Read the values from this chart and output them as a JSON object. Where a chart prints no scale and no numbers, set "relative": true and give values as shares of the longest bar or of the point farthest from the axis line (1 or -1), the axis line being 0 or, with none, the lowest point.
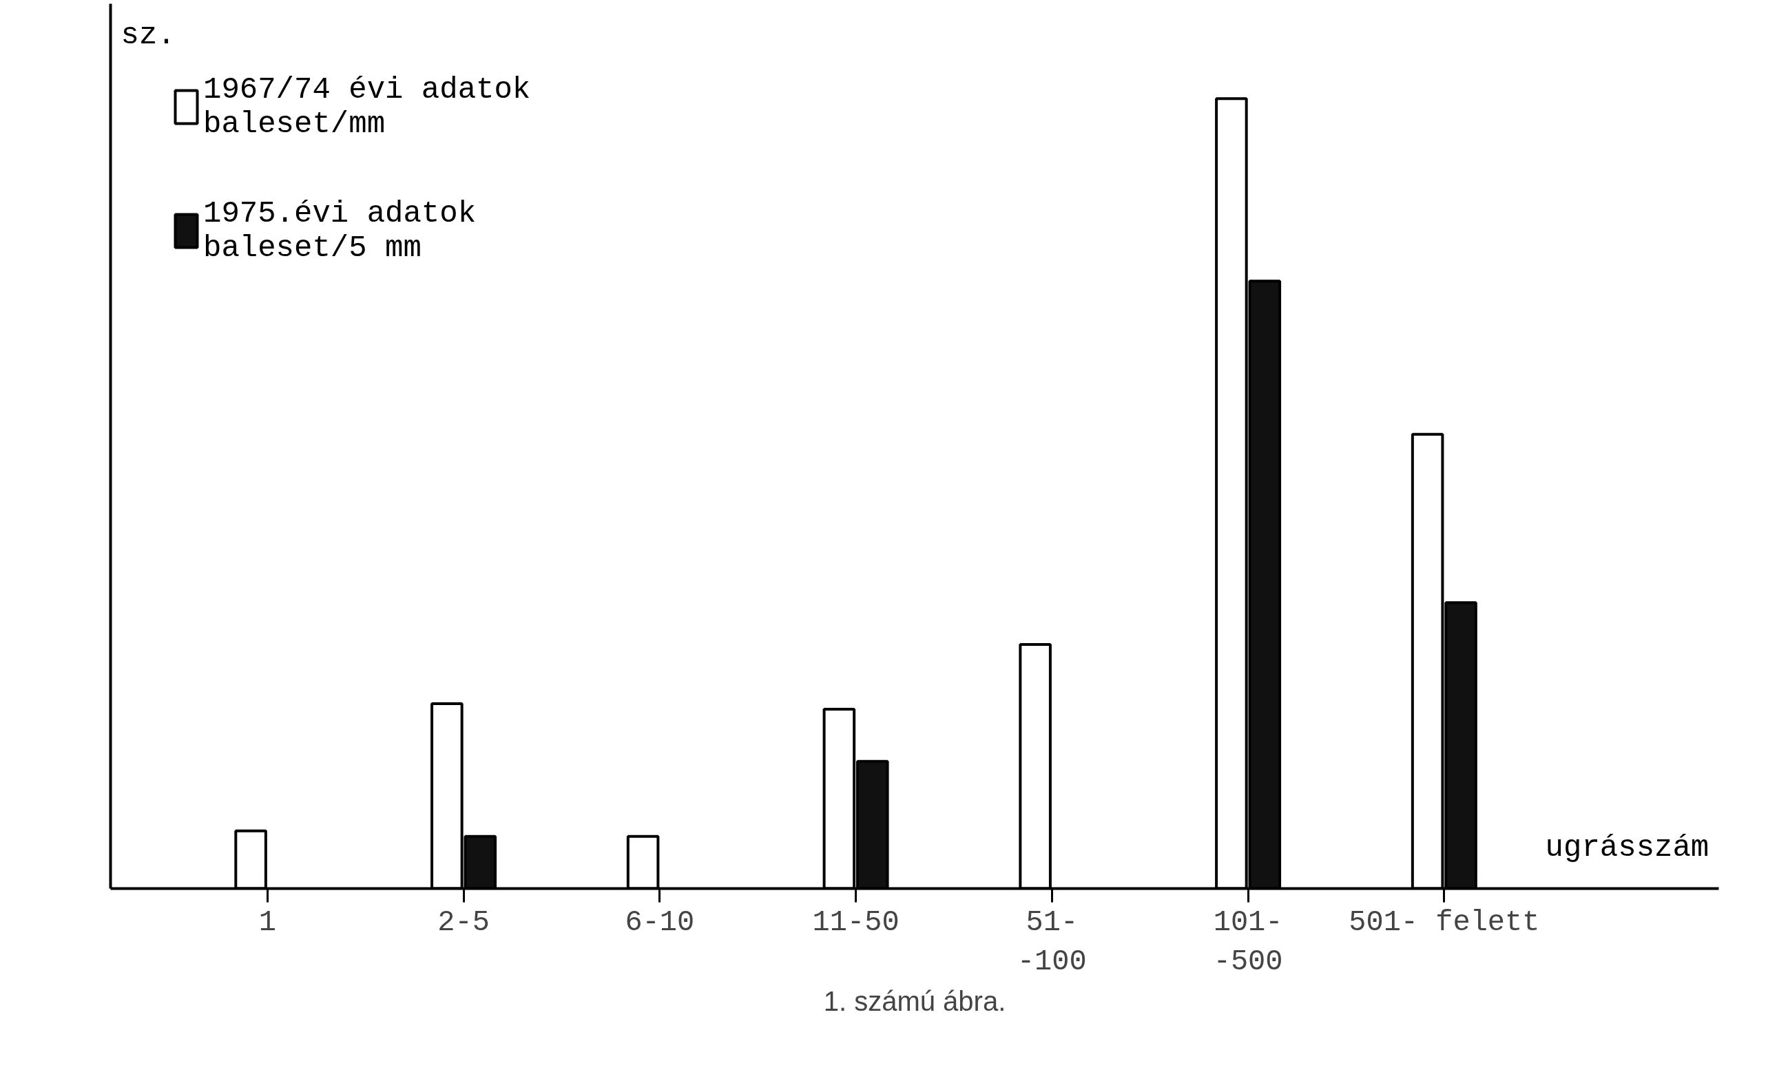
{
  "chart_data": {
    "type": "bar",
    "relative": true,
    "xlabel": "ugrásszám",
    "ylabel": "sz.",
    "categories": [
      "1",
      "2-5",
      "6-10",
      "11-50",
      "51-\n-100",
      "101-\n-500",
      "501- felett"
    ],
    "series": [
      {
        "name": "1967/74 évi adatok\nbaleset/mm",
        "color": "#ffffff",
        "values": [
          0.073,
          0.234,
          0.066,
          0.227,
          0.309,
          1.0,
          0.575
        ]
      },
      {
        "name": "1975.évi adatok\nbaleset/5 mm",
        "color": "#111111",
        "values": [
          null,
          0.066,
          null,
          0.161,
          null,
          0.769,
          0.362
        ]
      }
    ],
    "legend": "top left",
    "grid": false,
    "annotations": [
      "1. számú ábra."
    ]
  }
}
